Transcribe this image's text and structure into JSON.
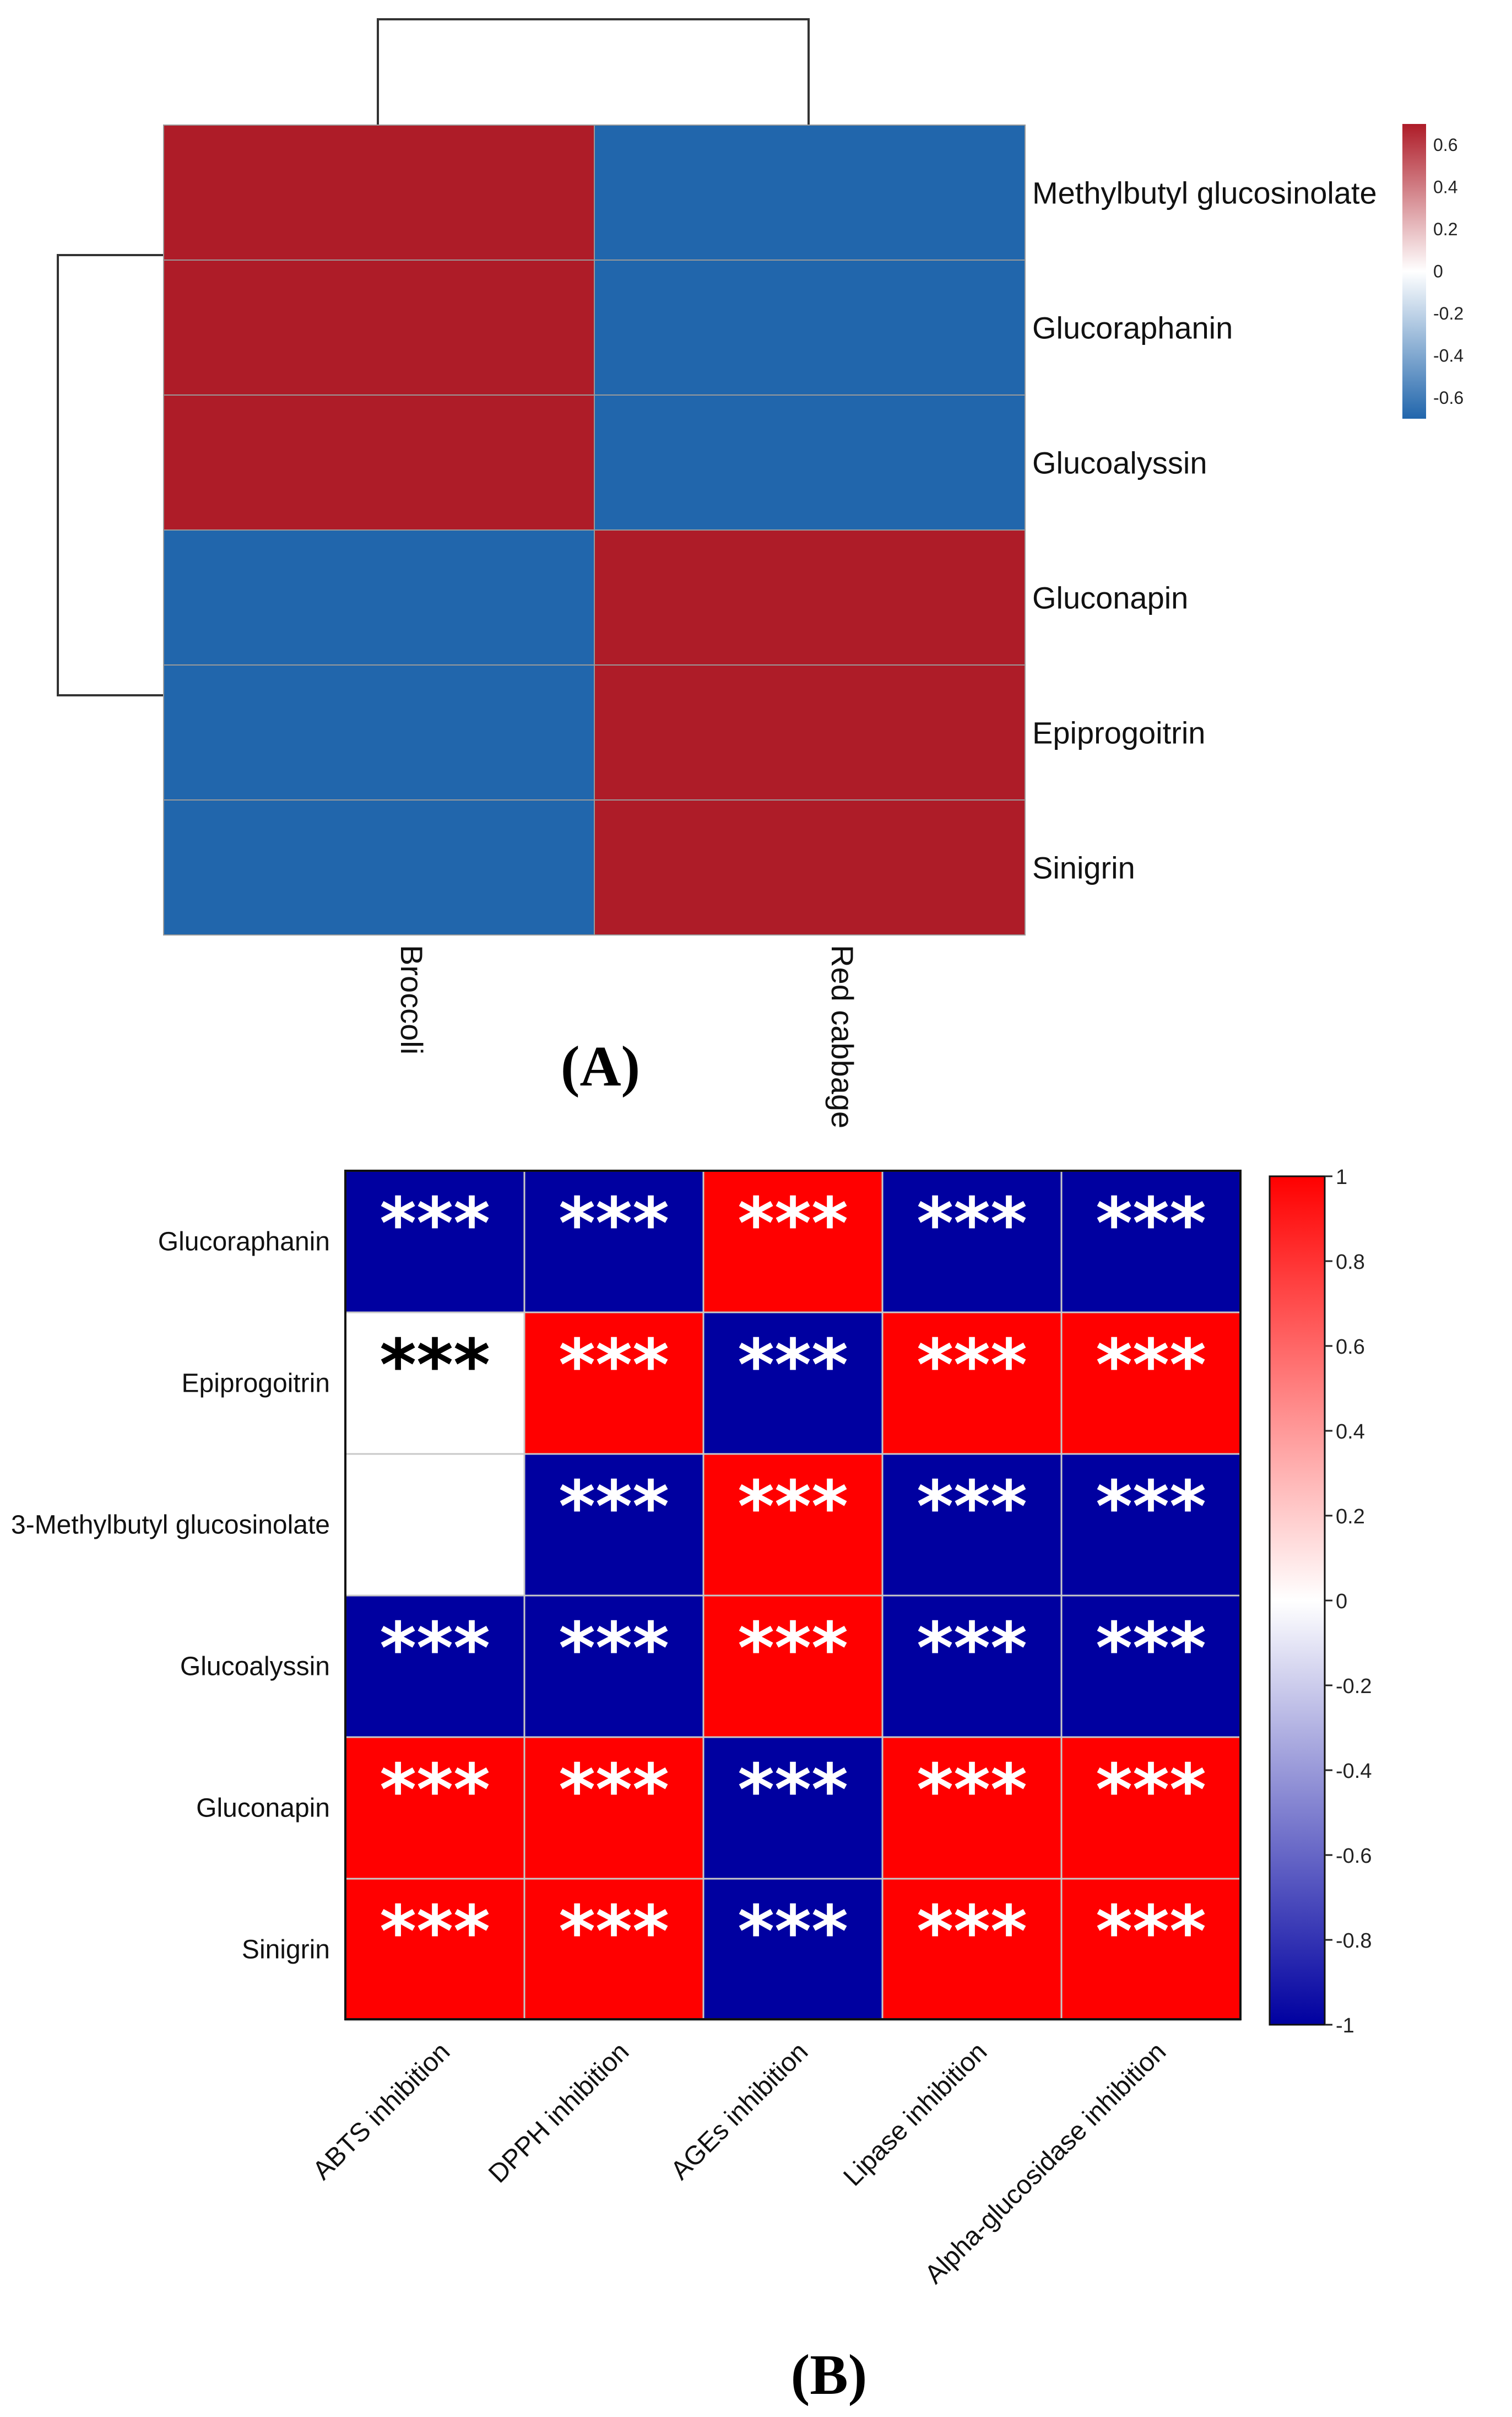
{
  "chart_data": [
    {
      "panel": "(A)",
      "type": "heatmap",
      "rows": [
        "Methylbutyl glucosinolate",
        "Glucoraphanin",
        "Glucoalyssin",
        "Gluconapin",
        "Epiprogoitrin",
        "Sinigrin"
      ],
      "columns": [
        "Broccoli",
        "Red cabbage"
      ],
      "values": [
        [
          0.7,
          -0.7
        ],
        [
          0.7,
          -0.7
        ],
        [
          0.7,
          -0.7
        ],
        [
          -0.7,
          0.7
        ],
        [
          -0.7,
          0.7
        ],
        [
          -0.7,
          0.7
        ]
      ],
      "colorbar": {
        "range": [
          -0.7,
          0.7
        ],
        "ticks": [
          "0.6",
          "0.4",
          "0.2",
          "0",
          "-0.2",
          "-0.4",
          "-0.6"
        ],
        "tick_values": [
          0.6,
          0.4,
          0.2,
          0,
          -0.2,
          -0.4,
          -0.6
        ]
      },
      "colors": {
        "low": "#2166ac",
        "mid": "#ffffff",
        "high": "#ae1c28"
      },
      "dendrograms": {
        "columns": true,
        "rows": "split into rows 1-3 and rows 4-6"
      }
    },
    {
      "panel": "(B)",
      "type": "heatmap",
      "rows": [
        "Glucoraphanin",
        "Epiprogoitrin",
        "3-Methylbutyl glucosinolate",
        "Glucoalyssin",
        "Gluconapin",
        "Sinigrin"
      ],
      "columns": [
        "ABTS inhibition",
        "DPPH inhibition",
        "AGEs inhibition",
        "Lipase inhibition",
        "Alpha-glucosidase inhibition"
      ],
      "values": [
        [
          -1,
          -1,
          1,
          -1,
          -1
        ],
        [
          0,
          1,
          -1,
          1,
          1
        ],
        [
          0,
          -1,
          1,
          -1,
          -1
        ],
        [
          -1,
          -1,
          1,
          -1,
          -1
        ],
        [
          1,
          1,
          -1,
          1,
          1
        ],
        [
          1,
          1,
          -1,
          1,
          1
        ]
      ],
      "annotations": [
        [
          "***",
          "***",
          "***",
          "***",
          "***"
        ],
        [
          "***",
          "***",
          "***",
          "***",
          "***"
        ],
        [
          "",
          "***",
          "***",
          "***",
          "***"
        ],
        [
          "***",
          "***",
          "***",
          "***",
          "***"
        ],
        [
          "***",
          "***",
          "***",
          "***",
          "***"
        ],
        [
          "***",
          "***",
          "***",
          "***",
          "***"
        ]
      ],
      "colorbar": {
        "range": [
          -1,
          1
        ],
        "ticks": [
          "1",
          "0.8",
          "0.6",
          "0.4",
          "0.2",
          "0",
          "-0.2",
          "-0.4",
          "-0.6",
          "-0.8",
          "-1"
        ],
        "tick_values": [
          1,
          0.8,
          0.6,
          0.4,
          0.2,
          0,
          -0.2,
          -0.4,
          -0.6,
          -0.8,
          -1
        ]
      },
      "colors": {
        "low": "#0000a0",
        "mid": "#ffffff",
        "high": "#ff0000",
        "star_light": "#ffffff",
        "star_dark": "#000000"
      }
    }
  ]
}
